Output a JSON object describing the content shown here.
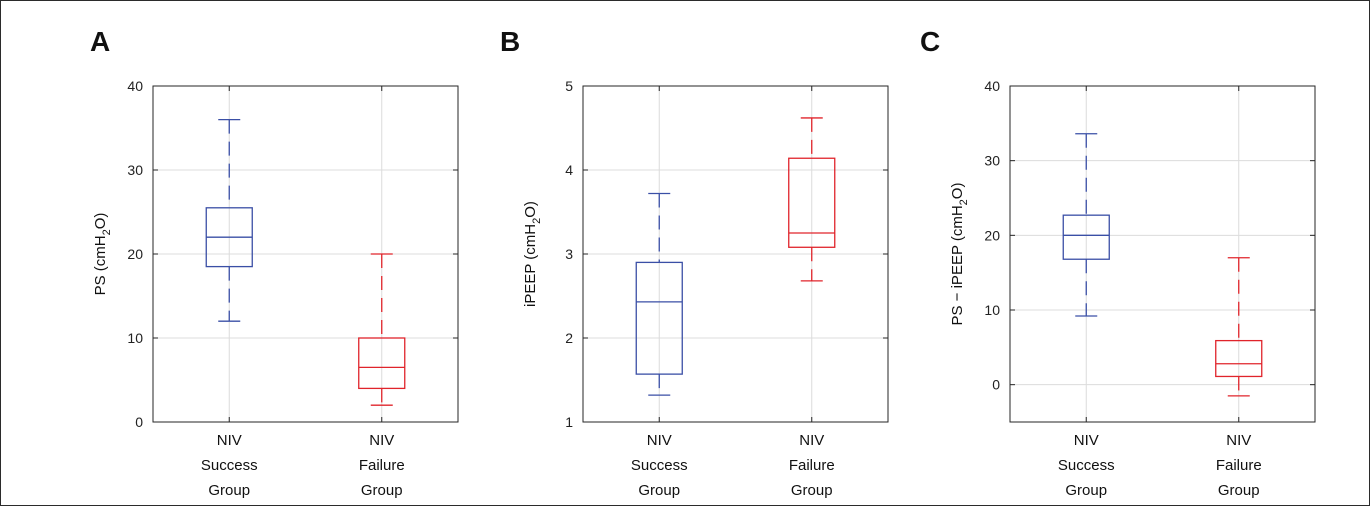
{
  "chart_data": [
    {
      "type": "box",
      "panel": "A",
      "ylabel": "PS (cmH 2O)",
      "ylabel_parts": [
        "PS (cmH",
        "2",
        "O)"
      ],
      "ylim": [
        0,
        40
      ],
      "yticks": [
        0,
        10,
        20,
        30,
        40
      ],
      "grid": true,
      "categories": [
        [
          "NIV",
          "Success",
          "Group"
        ],
        [
          "NIV",
          "Failure",
          "Group"
        ]
      ],
      "series": [
        {
          "color": "#3a4fa6",
          "min": 12,
          "q1": 18.5,
          "median": 22,
          "q3": 25.5,
          "max": 36
        },
        {
          "color": "#e0242b",
          "min": 2,
          "q1": 4,
          "median": 6.5,
          "q3": 10,
          "max": 20
        }
      ]
    },
    {
      "type": "box",
      "panel": "B",
      "ylabel": "iPEEP (cmH 2O)",
      "ylabel_parts": [
        "iPEEP (cmH",
        "2",
        "O)"
      ],
      "ylim": [
        1,
        5
      ],
      "yticks": [
        1,
        2,
        3,
        4,
        5
      ],
      "grid": true,
      "categories": [
        [
          "NIV",
          "Success",
          "Group"
        ],
        [
          "NIV",
          "Failure",
          "Group"
        ]
      ],
      "series": [
        {
          "color": "#3a4fa6",
          "min": 1.32,
          "q1": 1.57,
          "median": 2.43,
          "q3": 2.9,
          "max": 3.72
        },
        {
          "color": "#e0242b",
          "min": 2.68,
          "q1": 3.08,
          "median": 3.25,
          "q3": 4.14,
          "max": 4.62
        }
      ]
    },
    {
      "type": "box",
      "panel": "C",
      "ylabel": "PS − iPEEP (cmH2O)",
      "ylabel_parts": [
        "PS − iPEEP (cmH",
        "2",
        "O)"
      ],
      "ylim": [
        -5,
        40
      ],
      "yticks": [
        0,
        10,
        20,
        30,
        40
      ],
      "grid": true,
      "categories": [
        [
          "NIV",
          "Success",
          "Group"
        ],
        [
          "NIV",
          "Failure",
          "Group"
        ]
      ],
      "series": [
        {
          "color": "#3a4fa6",
          "min": 9.2,
          "q1": 16.8,
          "median": 20,
          "q3": 22.7,
          "max": 33.6
        },
        {
          "color": "#e0242b",
          "min": -1.5,
          "q1": 1.1,
          "median": 2.8,
          "q3": 5.9,
          "max": 17
        }
      ]
    }
  ]
}
